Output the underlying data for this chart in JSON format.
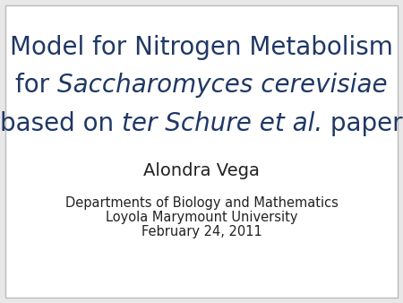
{
  "background_color": "#e8e8e8",
  "inner_background": "#ffffff",
  "title_color": "#1f3864",
  "author_color": "#222222",
  "info_color": "#222222",
  "border_color": "#bbbbbb",
  "title_line1": "Model for Nitrogen Metabolism",
  "title_line2_pre": "for ",
  "title_line2_italic": "Saccharomyces cerevisiae",
  "title_line3_pre": "based on ",
  "title_line3_italic": "ter Schure et al.",
  "title_line3_post": " paper",
  "author": "Alondra Vega",
  "info_line1": "Departments of Biology and Mathematics",
  "info_line2": "Loyola Marymount University",
  "info_line3": "February 24, 2011",
  "title_fontsize": 20,
  "author_fontsize": 14,
  "info_fontsize": 10.5
}
